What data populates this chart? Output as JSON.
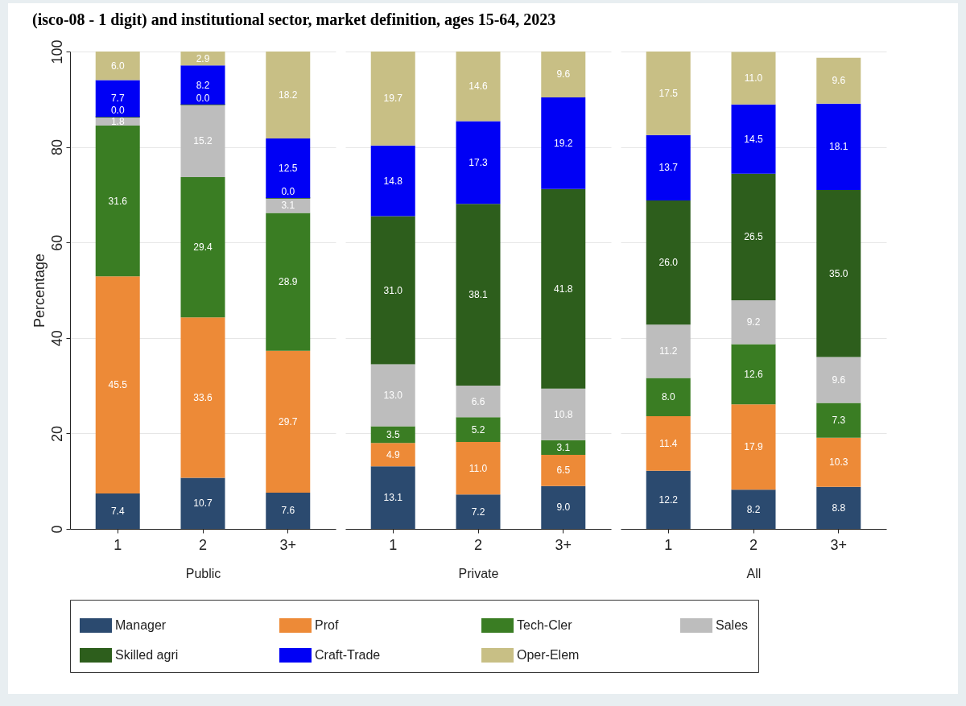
{
  "chart_data": [
    {
      "type": "bar",
      "title": "(isco-08 - 1 digit) and institutional sector, market definition, ages 15-64, 2023",
      "stacked": true,
      "categories": [
        "1",
        "2",
        "3+"
      ],
      "xlabel": "Public",
      "ylabel": "Percentage",
      "ylim": [
        0,
        100
      ],
      "yticks": [
        0,
        20,
        40,
        60,
        80,
        100
      ],
      "grid": "y",
      "legend": "bottom",
      "series": [
        {
          "name": "Manager",
          "color": "#2b4a6f",
          "values": [
            7.4,
            10.7,
            7.6
          ],
          "value_labels": [
            "7.4",
            "10.7",
            "7.6"
          ]
        },
        {
          "name": "Prof",
          "color": "#ed8a37",
          "values": [
            45.5,
            33.6,
            29.7
          ],
          "value_labels": [
            "45.5",
            "33.6",
            "29.7"
          ]
        },
        {
          "name": "Tech-Cler",
          "color": "#3a7d23",
          "values": [
            31.6,
            29.4,
            28.9
          ],
          "value_labels": [
            "31.6",
            "29.4",
            "28.9"
          ]
        },
        {
          "name": "Sales",
          "color": "#bdbdbd",
          "values": [
            1.8,
            15.2,
            3.1
          ],
          "value_labels": [
            "1.8",
            "15.2",
            "3.1"
          ]
        },
        {
          "name": "Skilled agri",
          "color": "#2d5e1c",
          "values": [
            0.0,
            0.0,
            0.0
          ],
          "value_labels": [
            "0.0",
            "0.0",
            "0.0"
          ]
        },
        {
          "name": "Craft-Trade",
          "color": "#0000f5",
          "values": [
            7.7,
            8.2,
            12.5
          ],
          "value_labels": [
            "7.7",
            "8.2",
            "12.5"
          ]
        },
        {
          "name": "Oper-Elem",
          "color": "#c8bf85",
          "values": [
            6.0,
            2.9,
            18.2
          ],
          "value_labels": [
            "6.0",
            "2.9",
            "18.2"
          ]
        }
      ]
    },
    {
      "type": "bar",
      "stacked": true,
      "categories": [
        "1",
        "2",
        "3+"
      ],
      "xlabel": "Private",
      "ylim": [
        0,
        100
      ],
      "yticks": [
        0,
        20,
        40,
        60,
        80,
        100
      ],
      "grid": "y",
      "tick_labels": "x",
      "series": [
        {
          "color": "#2b4a6f",
          "values": [
            13.1,
            7.2,
            9.0
          ],
          "value_labels": [
            "13.1",
            "7.2",
            "9.0"
          ]
        },
        {
          "color": "#ed8a37",
          "values": [
            4.9,
            11.0,
            6.5
          ],
          "value_labels": [
            "4.9",
            "11.0",
            "6.5"
          ]
        },
        {
          "color": "#3a7d23",
          "values": [
            3.5,
            5.2,
            3.1
          ],
          "value_labels": [
            "3.5",
            "5.2",
            "3.1"
          ]
        },
        {
          "color": "#bdbdbd",
          "values": [
            13.0,
            6.6,
            10.8
          ],
          "value_labels": [
            "13.0",
            "6.6",
            "10.8"
          ]
        },
        {
          "color": "#2d5e1c",
          "values": [
            31.0,
            38.1,
            41.8
          ],
          "value_labels": [
            "31.0",
            "38.1",
            "41.8"
          ]
        },
        {
          "color": "#0000f5",
          "values": [
            14.8,
            17.3,
            19.2
          ],
          "value_labels": [
            "14.8",
            "17.3",
            "19.2"
          ]
        },
        {
          "color": "#c8bf85",
          "values": [
            19.7,
            14.6,
            9.6
          ],
          "value_labels": [
            "19.7",
            "14.6",
            "9.6"
          ]
        }
      ]
    },
    {
      "type": "bar",
      "stacked": true,
      "categories": [
        "1",
        "2",
        "3+"
      ],
      "xlabel": "All",
      "ylim": [
        0,
        100
      ],
      "yticks": [
        0,
        20,
        40,
        60,
        80,
        100
      ],
      "grid": "y",
      "tick_labels": "x",
      "series": [
        {
          "color": "#2b4a6f",
          "values": [
            12.2,
            8.2,
            8.8
          ],
          "value_labels": [
            "12.2",
            "8.2",
            "8.8"
          ]
        },
        {
          "color": "#ed8a37",
          "values": [
            11.4,
            17.9,
            10.3
          ],
          "value_labels": [
            "11.4",
            "17.9",
            "10.3"
          ]
        },
        {
          "color": "#3a7d23",
          "values": [
            8.0,
            12.6,
            7.3
          ],
          "value_labels": [
            "8.0",
            "12.6",
            "7.3"
          ]
        },
        {
          "color": "#bdbdbd",
          "values": [
            11.2,
            9.2,
            9.6
          ],
          "value_labels": [
            "11.2",
            "9.2",
            "9.6"
          ]
        },
        {
          "color": "#2d5e1c",
          "values": [
            26.0,
            26.5,
            35.0
          ],
          "value_labels": [
            "26.0",
            "26.5",
            "35.0"
          ]
        },
        {
          "color": "#0000f5",
          "values": [
            13.7,
            14.5,
            18.1
          ],
          "value_labels": [
            "13.7",
            "14.5",
            "18.1"
          ]
        },
        {
          "color": "#c8bf85",
          "values": [
            17.5,
            11.0,
            9.6
          ],
          "value_labels": [
            "17.5",
            "11.0",
            "9.6"
          ]
        }
      ]
    }
  ]
}
